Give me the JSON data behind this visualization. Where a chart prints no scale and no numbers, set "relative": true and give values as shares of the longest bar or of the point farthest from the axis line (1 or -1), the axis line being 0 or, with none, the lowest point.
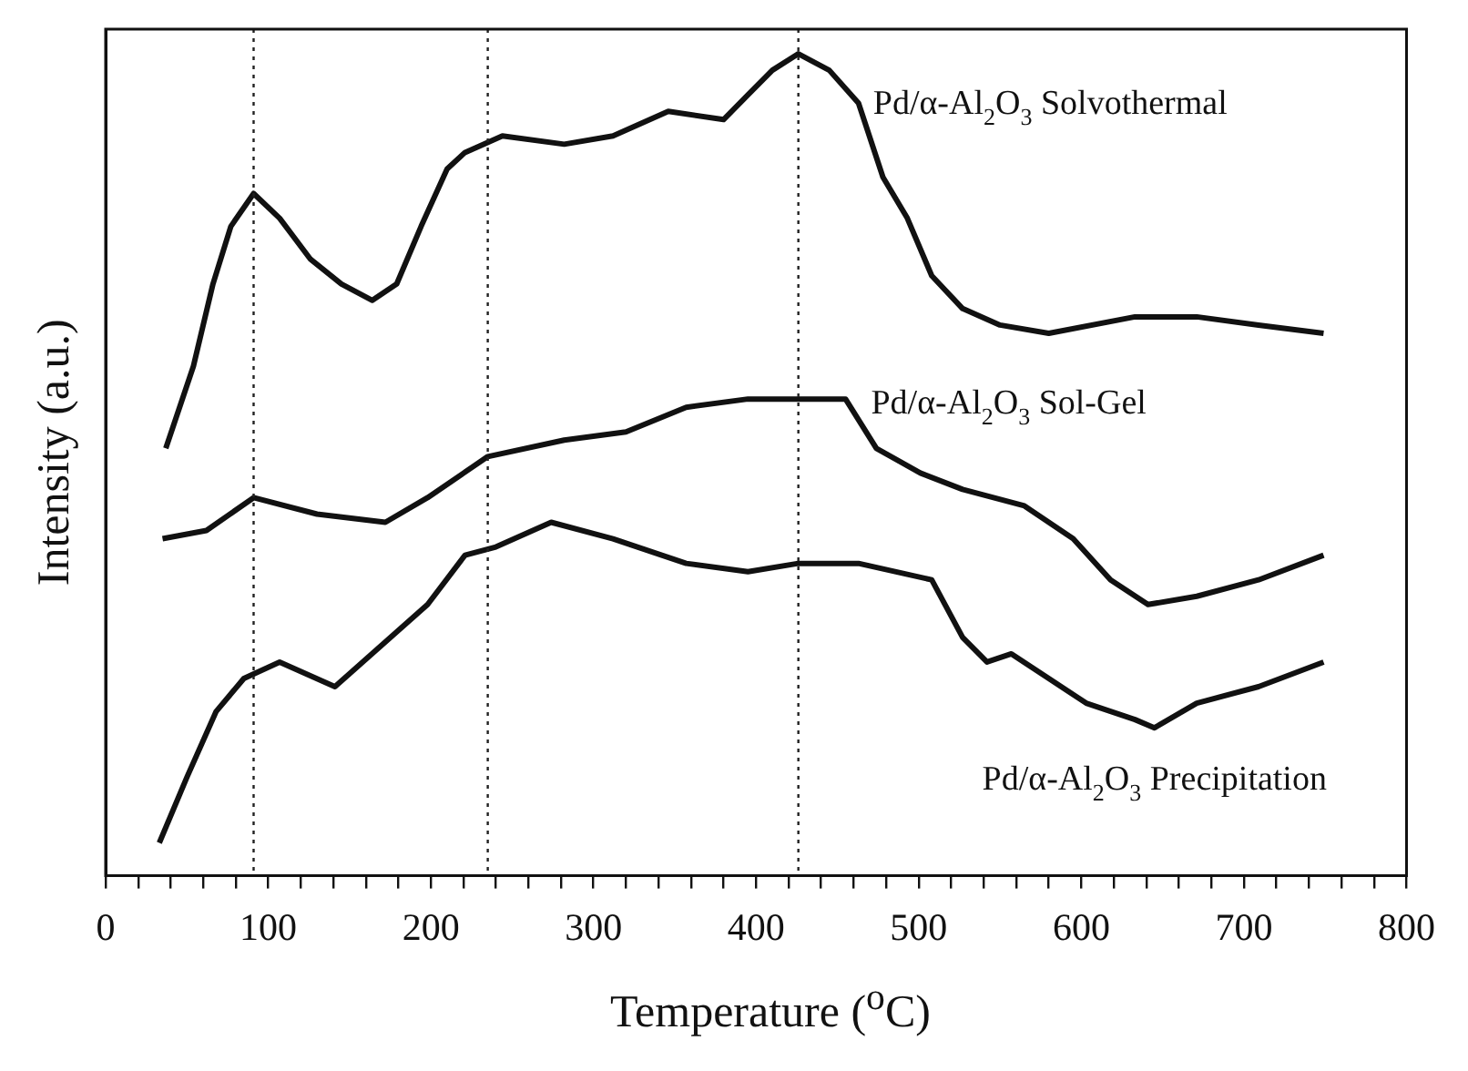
{
  "chart_data": {
    "type": "line",
    "relative": true,
    "xlabel": "Temperature ($^{o}$C)",
    "ylabel": "Intensity (a.u.)",
    "xlim": [
      0,
      800
    ],
    "xticks": [
      0,
      {
        "value": 20,
        "label": null
      },
      {
        "value": 40,
        "label": null
      },
      {
        "value": 60,
        "label": null
      },
      {
        "value": 80,
        "label": null
      },
      100,
      {
        "value": 120,
        "label": null
      },
      {
        "value": 140,
        "label": null
      },
      {
        "value": 160,
        "label": null
      },
      {
        "value": 180,
        "label": null
      },
      200,
      {
        "value": 220,
        "label": null
      },
      {
        "value": 240,
        "label": null
      },
      {
        "value": 260,
        "label": null
      },
      {
        "value": 280,
        "label": null
      },
      300,
      {
        "value": 320,
        "label": null
      },
      {
        "value": 340,
        "label": null
      },
      {
        "value": 360,
        "label": null
      },
      {
        "value": 380,
        "label": null
      },
      400,
      {
        "value": 420,
        "label": null
      },
      {
        "value": 440,
        "label": null
      },
      {
        "value": 460,
        "label": null
      },
      {
        "value": 480,
        "label": null
      },
      500,
      {
        "value": 520,
        "label": null
      },
      {
        "value": 540,
        "label": null
      },
      {
        "value": 560,
        "label": null
      },
      {
        "value": 580,
        "label": null
      },
      600,
      {
        "value": 620,
        "label": null
      },
      {
        "value": 640,
        "label": null
      },
      {
        "value": 660,
        "label": null
      },
      {
        "value": 680,
        "label": null
      },
      700,
      {
        "value": 720,
        "label": null
      },
      {
        "value": 740,
        "label": null
      },
      {
        "value": 760,
        "label": null
      },
      {
        "value": 780,
        "label": null
      },
      800
    ],
    "series": [
      {
        "name": "Pd/α-Al$_{2}$O$_{3}$ Solvothermal",
        "color": "#111111",
        "x": [
          37,
          54,
          66,
          77,
          91,
          107,
          126,
          145,
          164,
          179,
          194,
          210,
          221,
          244,
          282,
          312,
          346,
          380,
          395,
          410,
          426,
          445,
          463,
          478,
          493,
          508,
          527,
          550,
          580,
          633,
          671,
          709,
          749
        ],
        "values": [
          0.52,
          0.62,
          0.72,
          0.79,
          0.83,
          0.8,
          0.75,
          0.72,
          0.7,
          0.72,
          0.79,
          0.86,
          0.88,
          0.9,
          0.89,
          0.9,
          0.93,
          0.92,
          0.95,
          0.98,
          1,
          0.98,
          0.94,
          0.85,
          0.8,
          0.73,
          0.69,
          0.67,
          0.66,
          0.68,
          0.68,
          0.67,
          0.66
        ]
      },
      {
        "name": "Pd/α-Al$_{2}$O$_{3}$ Sol-Gel",
        "color": "#111111",
        "x": [
          35,
          62,
          91,
          130,
          172,
          198,
          235,
          282,
          320,
          357,
          395,
          426,
          455,
          474,
          501,
          527,
          565,
          595,
          618,
          641,
          671,
          709,
          749
        ],
        "values": [
          0.41,
          0.42,
          0.46,
          0.44,
          0.43,
          0.46,
          0.51,
          0.53,
          0.54,
          0.57,
          0.58,
          0.58,
          0.58,
          0.52,
          0.49,
          0.47,
          0.45,
          0.41,
          0.36,
          0.33,
          0.34,
          0.36,
          0.39
        ]
      },
      {
        "name": "Pd/α-Al$_{2}$O$_{3}$ Precipitation",
        "color": "#111111",
        "x": [
          33,
          50,
          68,
          85,
          107,
          141,
          198,
          221,
          240,
          274,
          312,
          357,
          395,
          426,
          463,
          508,
          527,
          542,
          557,
          580,
          603,
          633,
          645,
          671,
          709,
          749
        ],
        "values": [
          0.04,
          0.12,
          0.2,
          0.24,
          0.26,
          0.23,
          0.33,
          0.39,
          0.4,
          0.43,
          0.41,
          0.38,
          0.37,
          0.38,
          0.38,
          0.36,
          0.29,
          0.26,
          0.27,
          0.24,
          0.21,
          0.19,
          0.18,
          0.21,
          0.23,
          0.26
        ]
      }
    ],
    "ref_lines": [
      {
        "axis": "x",
        "value": 91,
        "color": "#222222",
        "line_style": "dotted"
      },
      {
        "axis": "x",
        "value": 235,
        "color": "#222222",
        "line_style": "dotted"
      },
      {
        "axis": "x",
        "value": 426,
        "color": "#222222",
        "line_style": "dotted"
      }
    ]
  }
}
